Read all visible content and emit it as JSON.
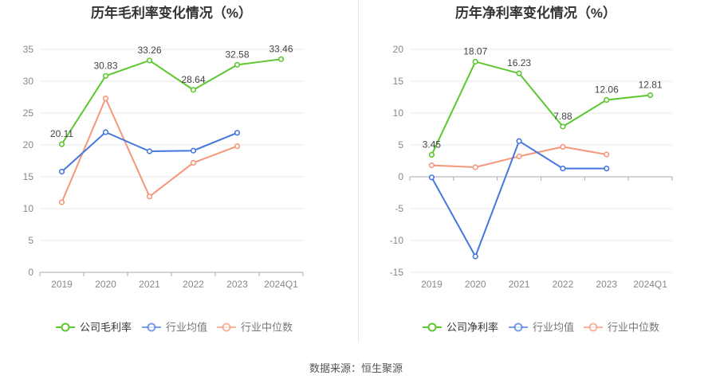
{
  "source_label": "数据来源：恒生聚源",
  "colors": {
    "company": "#5cc72e",
    "industry_avg": "#4477dd",
    "industry_median": "#f5977a",
    "grid": "#e9e9e9",
    "axis": "#aaaaaa",
    "tick_text": "#888888",
    "title": "#333333"
  },
  "chart_data": [
    {
      "type": "line",
      "title": "历年毛利率变化情况（%）",
      "categories": [
        "2019",
        "2020",
        "2021",
        "2022",
        "2023",
        "2024Q1"
      ],
      "ylim": [
        0,
        35
      ],
      "yticks": [
        0,
        5,
        10,
        15,
        20,
        25,
        30,
        35
      ],
      "grid": true,
      "legend_position": "bottom",
      "series": [
        {
          "name": "公司毛利率",
          "color_key": "company",
          "labels": true,
          "values": [
            20.11,
            30.83,
            33.26,
            28.64,
            32.58,
            33.46
          ]
        },
        {
          "name": "行业均值",
          "color_key": "industry_avg",
          "labels": false,
          "values": [
            15.8,
            22.0,
            19.0,
            19.1,
            21.9,
            null
          ]
        },
        {
          "name": "行业中位数",
          "color_key": "industry_median",
          "labels": false,
          "values": [
            11.0,
            27.3,
            11.9,
            17.2,
            19.8,
            null
          ]
        }
      ]
    },
    {
      "type": "line",
      "title": "历年净利率变化情况（%）",
      "categories": [
        "2019",
        "2020",
        "2021",
        "2022",
        "2023",
        "2024Q1"
      ],
      "ylim": [
        -15,
        20
      ],
      "yticks": [
        -15,
        -10,
        -5,
        0,
        5,
        10,
        15,
        20
      ],
      "grid": true,
      "legend_position": "bottom",
      "series": [
        {
          "name": "公司净利率",
          "color_key": "company",
          "labels": true,
          "values": [
            3.45,
            18.07,
            16.23,
            7.88,
            12.06,
            12.81
          ]
        },
        {
          "name": "行业均值",
          "color_key": "industry_avg",
          "labels": false,
          "values": [
            -0.1,
            -12.5,
            5.6,
            1.3,
            1.3,
            null
          ]
        },
        {
          "name": "行业中位数",
          "color_key": "industry_median",
          "labels": false,
          "values": [
            1.8,
            1.5,
            3.2,
            4.7,
            3.5,
            null
          ]
        }
      ]
    }
  ]
}
